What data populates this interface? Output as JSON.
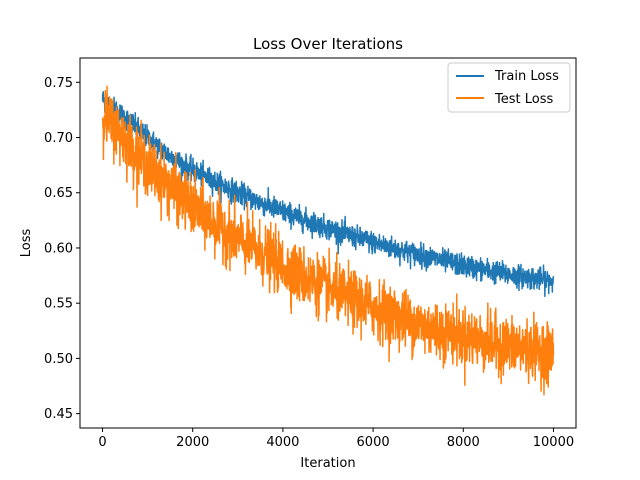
{
  "chart_data": {
    "type": "line",
    "title": "Loss Over Iterations",
    "xlabel": "Iteration",
    "ylabel": "Loss",
    "xlim": [
      -500,
      10500
    ],
    "ylim": [
      0.437,
      0.772
    ],
    "x_ticks": [
      0,
      2000,
      4000,
      6000,
      8000,
      10000
    ],
    "y_ticks": [
      0.45,
      0.5,
      0.55,
      0.6,
      0.65,
      0.7,
      0.75
    ],
    "x_tick_labels": [
      "0",
      "2000",
      "4000",
      "6000",
      "8000",
      "10000"
    ],
    "y_tick_labels": [
      "0.45",
      "0.50",
      "0.55",
      "0.60",
      "0.65",
      "0.70",
      "0.75"
    ],
    "grid": false,
    "legend": "top-right",
    "series": [
      {
        "name": "Train Loss",
        "color": "#1f77b4",
        "x": [
          0,
          500,
          1000,
          1500,
          2000,
          2500,
          3000,
          3500,
          4000,
          4500,
          5000,
          5500,
          6000,
          6500,
          7000,
          7500,
          8000,
          8500,
          9000,
          9500,
          10000
        ],
        "y": [
          0.735,
          0.718,
          0.7,
          0.683,
          0.67,
          0.66,
          0.65,
          0.641,
          0.633,
          0.625,
          0.618,
          0.611,
          0.605,
          0.599,
          0.594,
          0.589,
          0.584,
          0.58,
          0.576,
          0.573,
          0.57
        ],
        "noise": 0.01
      },
      {
        "name": "Test Loss",
        "color": "#ff7f0e",
        "x": [
          0,
          500,
          1000,
          1500,
          2000,
          2500,
          3000,
          3500,
          4000,
          4500,
          5000,
          5500,
          6000,
          6500,
          7000,
          7500,
          8000,
          8500,
          9000,
          9500,
          10000
        ],
        "y": [
          0.722,
          0.698,
          0.675,
          0.655,
          0.637,
          0.622,
          0.608,
          0.596,
          0.584,
          0.573,
          0.563,
          0.554,
          0.546,
          0.538,
          0.531,
          0.525,
          0.52,
          0.515,
          0.511,
          0.508,
          0.505
        ],
        "noise": 0.026
      }
    ]
  }
}
